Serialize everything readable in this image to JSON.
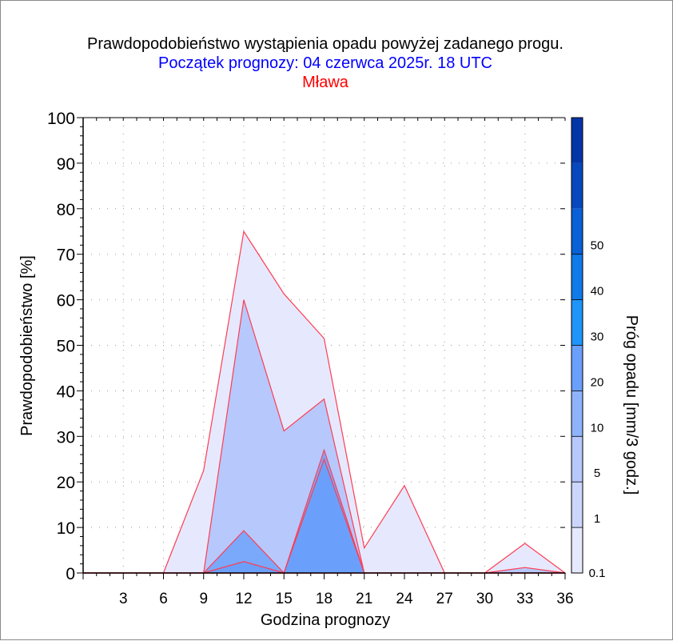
{
  "chart_data": {
    "type": "area",
    "title": "Prawdopodobieństwo wystąpienia opadu powyżej zadanego progu.",
    "subtitle": "Początek prognozy: 04 czerwca 2025r. 18 UTC",
    "location": "Mława",
    "xlabel": "Godzina prognozy",
    "ylabel": "Prawdopodobieństwo [%]",
    "colorbar_label": "Próg opadu [mm/3 godz.]",
    "xlim": [
      0,
      36
    ],
    "ylim": [
      0,
      100
    ],
    "x_ticks": [
      3,
      6,
      9,
      12,
      15,
      18,
      21,
      24,
      27,
      30,
      33,
      36
    ],
    "y_ticks": [
      0,
      10,
      20,
      30,
      40,
      50,
      60,
      70,
      80,
      90,
      100
    ],
    "grid": true,
    "x": [
      0,
      3,
      6,
      9,
      12,
      15,
      18,
      21,
      24,
      27,
      30,
      33,
      36
    ],
    "series": [
      {
        "name": "0.1",
        "color": "#e6e9fe",
        "values": [
          0,
          0,
          0,
          22.5,
          75,
          61.3,
          51.5,
          5.5,
          19.2,
          0,
          0,
          6.5,
          0
        ]
      },
      {
        "name": "1",
        "color": "#b7c8fc",
        "values": [
          0,
          0,
          0,
          0,
          60,
          31.2,
          38.2,
          0,
          0,
          0,
          0,
          1.2,
          0
        ]
      },
      {
        "name": "5",
        "color": "#7aa8fb",
        "values": [
          0,
          0,
          0,
          0,
          9.3,
          0,
          27,
          0,
          0,
          0,
          0,
          0,
          0
        ]
      },
      {
        "name": "10",
        "color": "#6aa0fb",
        "values": [
          0,
          0,
          0,
          0,
          2.5,
          0,
          25,
          0,
          0,
          0,
          0,
          0,
          0
        ]
      }
    ],
    "colorbar": {
      "labels": [
        "0.1",
        "1",
        "5",
        "10",
        "20",
        "30",
        "40",
        "50"
      ],
      "colors": [
        "#e6e9fe",
        "#ccd6fd",
        "#b7c8fc",
        "#8fb3fb",
        "#6aa0fb",
        "#1f95fa",
        "#0f7ae9",
        "#0a60d6",
        "#0848be",
        "#0436a8"
      ]
    }
  }
}
